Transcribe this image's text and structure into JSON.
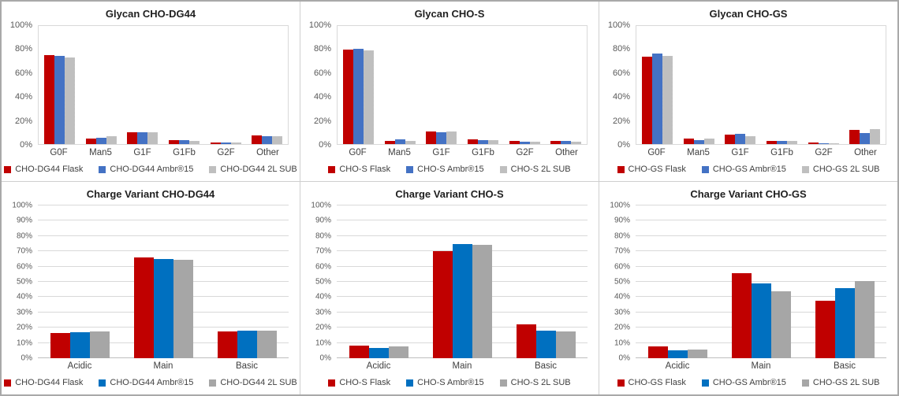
{
  "colors": {
    "red": "#c00000",
    "blue_top": "#4472c4",
    "blue_bottom": "#0070c0",
    "gray_top": "#bfbfbf",
    "gray_bottom": "#a6a6a6"
  },
  "chart_data": [
    {
      "type": "bar",
      "title": "Glycan CHO-DG44",
      "categories": [
        "G0F",
        "Man5",
        "G1F",
        "G1Fb",
        "G2F",
        "Other"
      ],
      "series": [
        {
          "name": "CHO-DG44 Flask",
          "color": "#c00000",
          "values": [
            75.5,
            5,
            10,
            3.5,
            1.5,
            7.5
          ]
        },
        {
          "name": "CHO-DG44 Ambr®15",
          "color": "#4472c4",
          "values": [
            75,
            5.5,
            10,
            3.5,
            1.5,
            7
          ]
        },
        {
          "name": "CHO-DG44 2L SUB",
          "color": "#bfbfbf",
          "values": [
            73.5,
            6.5,
            10,
            3,
            1.5,
            7
          ]
        }
      ],
      "ylim": [
        0,
        100
      ],
      "y_ticks": [
        "0%",
        "20%",
        "40%",
        "60%",
        "80%",
        "100%"
      ],
      "grid": false,
      "legend_position": "bottom"
    },
    {
      "type": "bar",
      "title": "Glycan CHO-S",
      "categories": [
        "G0F",
        "Man5",
        "G1F",
        "G1Fb",
        "G2F",
        "Other"
      ],
      "series": [
        {
          "name": "CHO-S Flask",
          "color": "#c00000",
          "values": [
            80,
            2.5,
            11,
            4,
            2.5,
            3
          ]
        },
        {
          "name": "CHO-S Ambr®15",
          "color": "#4472c4",
          "values": [
            81,
            4,
            10,
            3.5,
            2,
            3
          ]
        },
        {
          "name": "CHO-S 2L SUB",
          "color": "#bfbfbf",
          "values": [
            79.5,
            3,
            11,
            3.5,
            2,
            2
          ]
        }
      ],
      "ylim": [
        0,
        100
      ],
      "y_ticks": [
        "0%",
        "20%",
        "40%",
        "60%",
        "80%",
        "100%"
      ],
      "grid": false,
      "legend_position": "bottom"
    },
    {
      "type": "bar",
      "title": "Glycan CHO-GS",
      "categories": [
        "G0F",
        "Man5",
        "G1F",
        "G1Fb",
        "G2F",
        "Other"
      ],
      "series": [
        {
          "name": "CHO-GS Flask",
          "color": "#c00000",
          "values": [
            74,
            5,
            8,
            3,
            1.5,
            12
          ]
        },
        {
          "name": "CHO-GS Ambr®15",
          "color": "#4472c4",
          "values": [
            76.5,
            3.5,
            9,
            3,
            1,
            9.5
          ]
        },
        {
          "name": "CHO-GS 2L SUB",
          "color": "#bfbfbf",
          "values": [
            74.5,
            4.5,
            7,
            2.5,
            0.5,
            12.5
          ]
        }
      ],
      "ylim": [
        0,
        100
      ],
      "y_ticks": [
        "0%",
        "20%",
        "40%",
        "60%",
        "80%",
        "100%"
      ],
      "grid": false,
      "legend_position": "bottom"
    },
    {
      "type": "bar",
      "title": "Charge Variant CHO-DG44",
      "categories": [
        "Acidic",
        "Main",
        "Basic"
      ],
      "series": [
        {
          "name": "CHO-DG44 Flask",
          "color": "#c00000",
          "values": [
            16.5,
            66,
            17.5
          ]
        },
        {
          "name": "CHO-DG44 Ambr®15",
          "color": "#0070c0",
          "values": [
            17,
            65,
            18
          ]
        },
        {
          "name": "CHO-DG44 2L SUB",
          "color": "#a6a6a6",
          "values": [
            17.5,
            64.5,
            18
          ]
        }
      ],
      "ylim": [
        0,
        100
      ],
      "y_ticks": [
        "0%",
        "10%",
        "20%",
        "30%",
        "40%",
        "50%",
        "60%",
        "70%",
        "80%",
        "90%",
        "100%"
      ],
      "grid": true,
      "legend_position": "bottom"
    },
    {
      "type": "bar",
      "title": "Charge Variant CHO-S",
      "categories": [
        "Acidic",
        "Main",
        "Basic"
      ],
      "series": [
        {
          "name": "CHO-S Flask",
          "color": "#c00000",
          "values": [
            8,
            70,
            22
          ]
        },
        {
          "name": "CHO-S Ambr®15",
          "color": "#0070c0",
          "values": [
            6.5,
            75,
            18
          ]
        },
        {
          "name": "CHO-S 2L SUB",
          "color": "#a6a6a6",
          "values": [
            7.5,
            74,
            17.5
          ]
        }
      ],
      "ylim": [
        0,
        100
      ],
      "y_ticks": [
        "0%",
        "10%",
        "20%",
        "30%",
        "40%",
        "50%",
        "60%",
        "70%",
        "80%",
        "90%",
        "100%"
      ],
      "grid": true,
      "legend_position": "bottom"
    },
    {
      "type": "bar",
      "title": "Charge Variant CHO-GS",
      "categories": [
        "Acidic",
        "Main",
        "Basic"
      ],
      "series": [
        {
          "name": "CHO-GS Flask",
          "color": "#c00000",
          "values": [
            7.5,
            55.5,
            37.5
          ]
        },
        {
          "name": "CHO-GS Ambr®15",
          "color": "#0070c0",
          "values": [
            5,
            49,
            46
          ]
        },
        {
          "name": "CHO-GS 2L SUB",
          "color": "#a6a6a6",
          "values": [
            5.5,
            44,
            50.5
          ]
        }
      ],
      "ylim": [
        0,
        100
      ],
      "y_ticks": [
        "0%",
        "10%",
        "20%",
        "30%",
        "40%",
        "50%",
        "60%",
        "70%",
        "80%",
        "90%",
        "100%"
      ],
      "grid": true,
      "legend_position": "bottom"
    }
  ]
}
